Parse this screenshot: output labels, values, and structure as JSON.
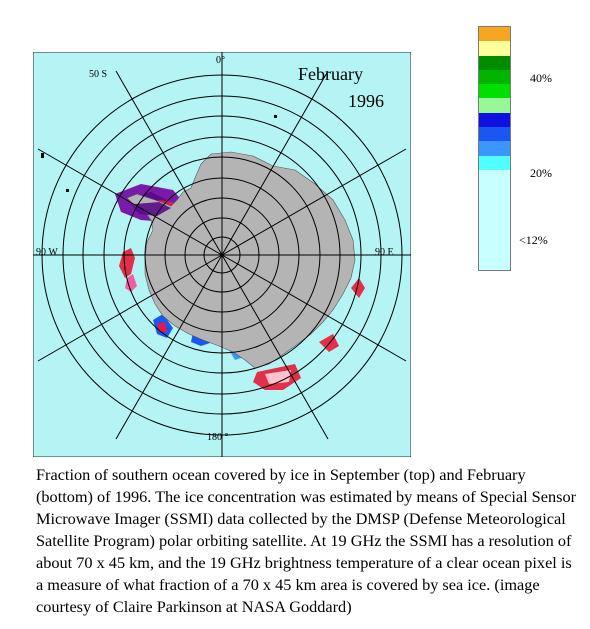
{
  "map": {
    "month": "February",
    "year": "1996",
    "labels": {
      "lat50": "50 S",
      "lon0": "0°",
      "lon90w": "90 W",
      "lon90e": "90 E",
      "lon180": "180 °"
    },
    "colors": {
      "ocean": "#b4f4f4",
      "land": "#b4b4b4",
      "grid": "#000000"
    }
  },
  "legend": {
    "colors": [
      "#f6a623",
      "#ffff9e",
      "#008c00",
      "#00b400",
      "#00e000",
      "#98f898",
      "#1010e0",
      "#1a56f0",
      "#3c96ff",
      "#52ffff",
      "#c8ffff"
    ],
    "ticks": {
      "t40": "40%",
      "t20": "20%",
      "t12": "<12%"
    }
  },
  "caption": "Fraction of southern ocean covered by ice in September (top) and February (bottom) of 1996.  The ice concentration was estimated by means of Special Sensor Microwave Imager (SSMI) data collected by the DMSP (Defense Meteorological Satellite Program) polar orbiting satellite.  At 19 GHz the SSMI has a resolution of about 70 x 45 km, and the 19 GHz brightness temperature of a clear ocean pixel is a measure of what fraction of a 70 x 45 km area is covered by sea ice.  (image courtesy of Claire Parkinson at NASA Goddard)"
}
